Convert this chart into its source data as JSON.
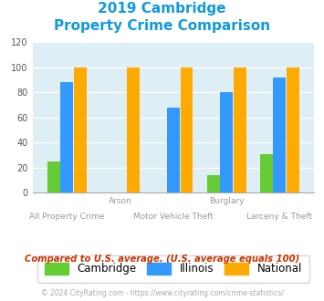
{
  "title_line1": "2019 Cambridge",
  "title_line2": "Property Crime Comparison",
  "categories": [
    "All Property Crime",
    "Arson",
    "Motor Vehicle Theft",
    "Burglary",
    "Larceny & Theft"
  ],
  "cambridge": [
    25,
    0,
    0,
    14,
    31
  ],
  "illinois": [
    88,
    0,
    68,
    80,
    92
  ],
  "national": [
    100,
    100,
    100,
    100,
    100
  ],
  "cambridge_color": "#66cc33",
  "illinois_color": "#3399ff",
  "national_color": "#ffaa00",
  "title_color": "#1199dd",
  "plot_bg": "#ddeef5",
  "ylim": [
    0,
    120
  ],
  "yticks": [
    0,
    20,
    40,
    60,
    80,
    100,
    120
  ],
  "xlabel_color": "#999999",
  "subtitle": "Compared to U.S. average. (U.S. average equals 100)",
  "subtitle_color": "#cc3300",
  "footer": "© 2024 CityRating.com - https://www.cityrating.com/crime-statistics/",
  "footer_color": "#aaaaaa",
  "legend_labels": [
    "Cambridge",
    "Illinois",
    "National"
  ],
  "tick_row1": [
    "",
    "Arson",
    "",
    "Burglary",
    ""
  ],
  "tick_row2": [
    "All Property Crime",
    "",
    "Motor Vehicle Theft",
    "",
    "Larceny & Theft"
  ]
}
